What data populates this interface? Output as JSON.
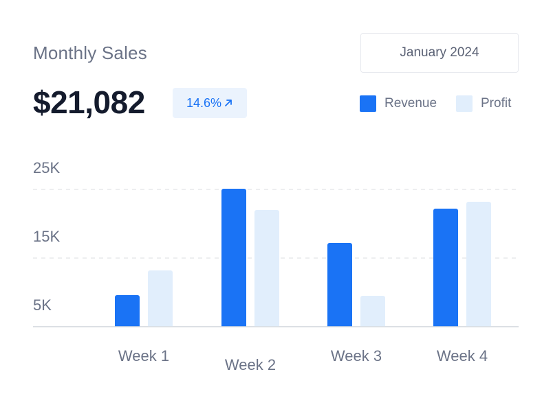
{
  "header": {
    "title": "Monthly Sales",
    "date_selector": "January 2024",
    "total": "$21,082",
    "change": "14.6%"
  },
  "colors": {
    "revenue": "#1a73f5",
    "profit": "#e1eefc",
    "gridline": "#e2e4e8",
    "axis_text": "#6b7387",
    "baseline": "#d8dbe0"
  },
  "chart_data": {
    "type": "bar",
    "title": "Monthly Sales",
    "xlabel": "",
    "ylabel": "",
    "categories": [
      "Week 1",
      "Week 2",
      "Week 3",
      "Week 4"
    ],
    "series": [
      {
        "name": "Revenue",
        "values": [
          9.6,
          25.1,
          17.2,
          22.2
        ]
      },
      {
        "name": "Profit",
        "values": [
          13.2,
          22.0,
          9.5,
          23.2
        ]
      }
    ],
    "y_ticks": [
      5,
      15,
      25
    ],
    "y_tick_labels": [
      "5K",
      "15K",
      "25K"
    ],
    "gridlines_at": [
      15,
      25
    ],
    "ylim": [
      5,
      25
    ],
    "legend": [
      "Revenue",
      "Profit"
    ],
    "legend_position": "top-right"
  }
}
